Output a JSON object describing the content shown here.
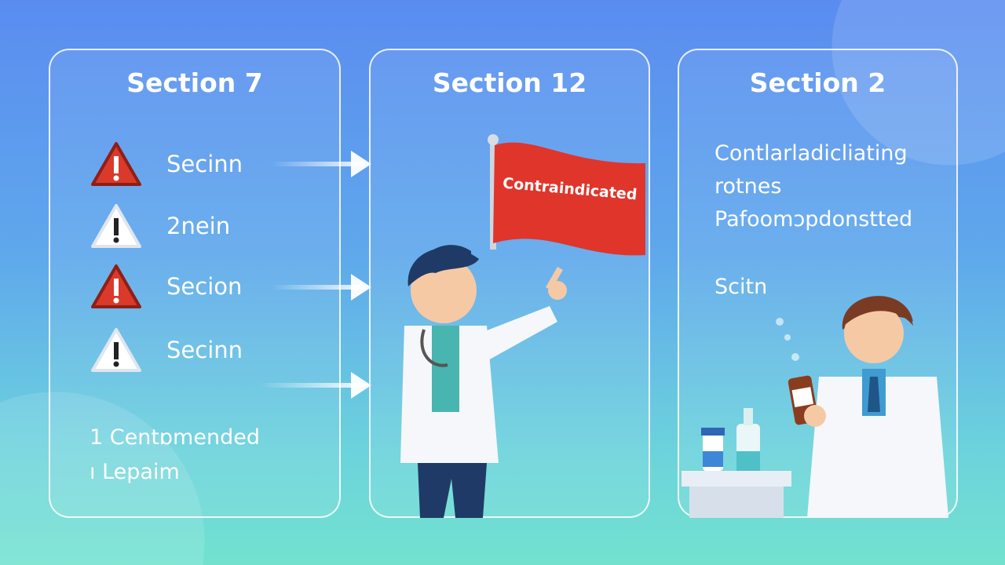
{
  "panels": [
    {
      "title": "Section 7",
      "rows": [
        {
          "icon": "warning-red-icon",
          "label": "Secinn"
        },
        {
          "icon": "warning-white-icon",
          "label": "2nein"
        },
        {
          "icon": "warning-red-icon",
          "label": "Secion"
        },
        {
          "icon": "warning-white-icon",
          "label": "Secinn"
        }
      ],
      "footer": [
        "1 Centɒmended",
        "ı Lepaim"
      ]
    },
    {
      "title": "Section 12",
      "flag_text": "Contraindicated"
    },
    {
      "title": "Section 2",
      "lines": [
        "Contlarladicliating",
        "rotnes",
        "Pafoomɔpdonstted"
      ],
      "sub": "Scitn"
    }
  ],
  "colors": {
    "warning_red": "#d93a2b",
    "flag_red": "#e0352b",
    "bg_top": "#5a8cf0",
    "bg_bottom": "#72e2cf"
  }
}
